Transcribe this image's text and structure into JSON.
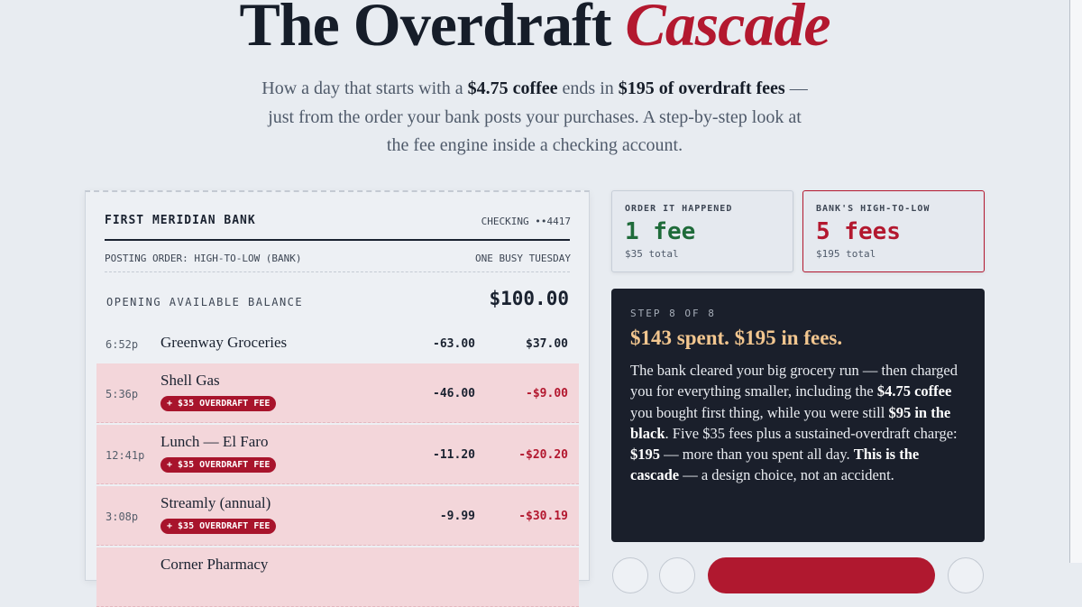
{
  "header": {
    "title": "The Overdraft",
    "title_accent": "Cascade",
    "subtitle": [
      "How a day that starts with a ",
      "$4.75 coffee",
      " ends in ",
      "$195 of overdraft fees",
      " — just from the order your bank posts your purchases. A step-by-step look at the fee engine inside a checking account."
    ]
  },
  "receipt": {
    "bank": "FIRST MERIDIAN BANK",
    "account": "CHECKING ••4417",
    "posting_order": "POSTING ORDER: HIGH-TO-LOW (BANK)",
    "day": "ONE BUSY TUESDAY",
    "opening_label": "OPENING AVAILABLE BALANCE",
    "opening_balance": "$100.00",
    "transactions": [
      {
        "time": "6:52p",
        "merchant": "Greenway Groceries",
        "amount": "-63.00",
        "balance": "$37.00"
      },
      {
        "time": "5:36p",
        "merchant": "Shell Gas",
        "fee": "+ $35 OVERDRAFT FEE",
        "amount": "-46.00",
        "balance": "-$9.00"
      },
      {
        "time": "12:41p",
        "merchant": "Lunch — El Faro",
        "fee": "+ $35 OVERDRAFT FEE",
        "amount": "-11.20",
        "balance": "-$20.20"
      },
      {
        "time": "3:08p",
        "merchant": "Streamly (annual)",
        "fee": "+ $35 OVERDRAFT FEE",
        "amount": "-9.99",
        "balance": "-$30.19"
      },
      {
        "merchant": "Corner Pharmacy"
      }
    ]
  },
  "comparison": [
    {
      "label": "ORDER IT HAPPENED",
      "value": "1 fee",
      "total": "$35 total"
    },
    {
      "label": "BANK'S HIGH-TO-LOW",
      "value": "5 fees",
      "total": "$195 total"
    }
  ],
  "step": {
    "counter": "STEP 8 OF 8",
    "headline": "$143 spent. $195 in fees.",
    "body": [
      "The bank cleared your big grocery run — then charged you for everything smaller, including the ",
      "$4.75 coffee",
      " you bought first thing, while you were still ",
      "$95 in the black",
      ". Five $35 fees plus a sustained-overdraft charge: ",
      "$195",
      " — more than you spent all day. ",
      "This is the cascade",
      " — a design choice, not an accident."
    ]
  }
}
